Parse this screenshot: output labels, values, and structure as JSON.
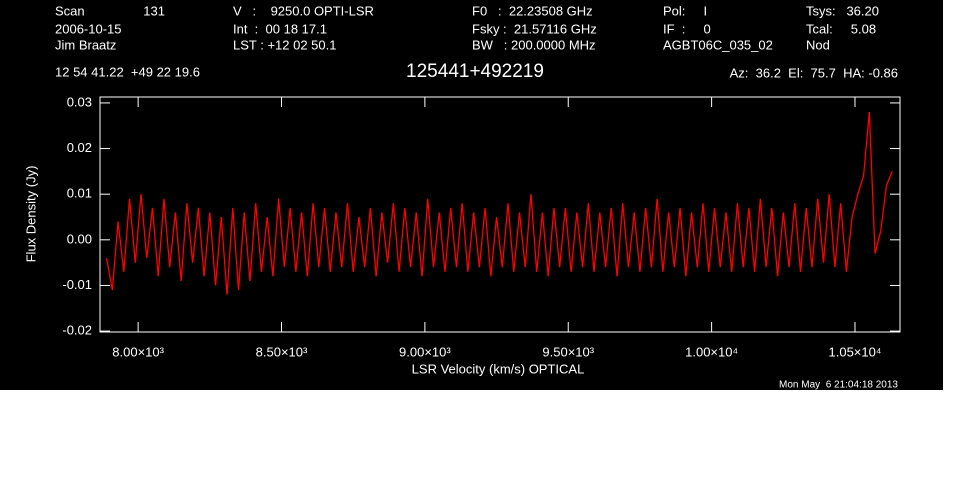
{
  "header": {
    "scan_label": "Scan",
    "scan": "131",
    "rows": [
      [
        "2006-10-15",
        "Int  :  00 18 17.1",
        "Fsky :  21.57116 GHz",
        "IF  :     0",
        "Tcal:     5.08"
      ],
      [
        "Jim Braatz",
        "LST : +12 02 50.1",
        "BW   : 200.0000 MHz",
        "AGBT06C_035_02",
        "Nod"
      ]
    ],
    "top": [
      "V   :    9250.0 OPTI-LSR",
      "F0   :  22.23508 GHz",
      "Pol:     I",
      "Tsys:   36.20"
    ],
    "coords": "12 54 41.22  +49 22 19.6",
    "pointing": "Az:  36.2  El:  75.7  HA: -0.86"
  },
  "timestamp": "Mon May  6 21:04:18 2013",
  "chart_data": {
    "type": "line",
    "title": "125441+492219",
    "xlabel": "LSR Velocity (km/s) OPTICAL",
    "ylabel": "Flux Density (Jy)",
    "xlim": [
      7867,
      10657
    ],
    "ylim": [
      -0.0202,
      0.0313
    ],
    "xticks": [
      {
        "value": 8000,
        "label": "8.00×10³"
      },
      {
        "value": 8500,
        "label": "8.50×10³"
      },
      {
        "value": 9000,
        "label": "9.00×10³"
      },
      {
        "value": 9500,
        "label": "9.50×10³"
      },
      {
        "value": 10000,
        "label": "1.00×10⁴"
      },
      {
        "value": 10500,
        "label": "1.05×10⁴"
      }
    ],
    "yticks": [
      -0.02,
      -0.01,
      {
        "value": 0,
        "label": "0.00"
      },
      0.01,
      0.02,
      0.03
    ],
    "x": [
      7890,
      7910,
      7930,
      7950,
      7970,
      7990,
      8010,
      8030,
      8050,
      8070,
      8090,
      8110,
      8130,
      8150,
      8170,
      8190,
      8210,
      8230,
      8250,
      8270,
      8290,
      8310,
      8330,
      8350,
      8370,
      8390,
      8410,
      8430,
      8450,
      8470,
      8490,
      8510,
      8530,
      8550,
      8570,
      8590,
      8610,
      8630,
      8650,
      8670,
      8690,
      8710,
      8730,
      8750,
      8770,
      8790,
      8810,
      8830,
      8850,
      8870,
      8890,
      8910,
      8930,
      8950,
      8970,
      8990,
      9010,
      9030,
      9050,
      9070,
      9090,
      9110,
      9130,
      9150,
      9170,
      9190,
      9210,
      9230,
      9250,
      9270,
      9290,
      9310,
      9330,
      9350,
      9370,
      9390,
      9410,
      9430,
      9450,
      9470,
      9490,
      9510,
      9530,
      9550,
      9570,
      9590,
      9610,
      9630,
      9650,
      9670,
      9690,
      9710,
      9730,
      9750,
      9770,
      9790,
      9810,
      9830,
      9850,
      9870,
      9890,
      9910,
      9930,
      9950,
      9970,
      9990,
      10010,
      10030,
      10050,
      10070,
      10090,
      10110,
      10130,
      10150,
      10170,
      10190,
      10210,
      10230,
      10250,
      10270,
      10290,
      10310,
      10330,
      10350,
      10370,
      10390,
      10410,
      10430,
      10450,
      10470,
      10490,
      10510,
      10530,
      10550,
      10570,
      10590,
      10610,
      10630
    ],
    "series": [
      {
        "name": "spectrum",
        "color": "#ff0000",
        "values": [
          -0.004,
          -0.011,
          0.004,
          -0.007,
          0.009,
          -0.005,
          0.01,
          -0.004,
          0.007,
          -0.008,
          0.009,
          -0.006,
          0.006,
          -0.009,
          0.008,
          -0.005,
          0.007,
          -0.008,
          0.006,
          -0.01,
          0.005,
          -0.012,
          0.007,
          -0.011,
          0.006,
          -0.009,
          0.008,
          -0.007,
          0.005,
          -0.008,
          0.009,
          -0.006,
          0.007,
          -0.007,
          0.006,
          -0.008,
          0.008,
          -0.006,
          0.007,
          -0.007,
          0.006,
          -0.006,
          0.008,
          -0.007,
          0.005,
          -0.006,
          0.007,
          -0.008,
          0.006,
          -0.005,
          0.008,
          -0.007,
          0.007,
          -0.006,
          0.006,
          -0.008,
          0.009,
          -0.006,
          0.006,
          -0.007,
          0.007,
          -0.006,
          0.008,
          -0.007,
          0.006,
          -0.006,
          0.007,
          -0.008,
          0.005,
          -0.006,
          0.008,
          -0.007,
          0.006,
          -0.006,
          0.01,
          -0.007,
          0.006,
          -0.008,
          0.007,
          -0.006,
          0.007,
          -0.007,
          0.006,
          -0.006,
          0.008,
          -0.007,
          0.006,
          -0.006,
          0.007,
          -0.008,
          0.008,
          -0.006,
          0.006,
          -0.007,
          0.007,
          -0.006,
          0.009,
          -0.007,
          0.006,
          -0.006,
          0.007,
          -0.008,
          0.006,
          -0.006,
          0.008,
          -0.007,
          0.007,
          -0.006,
          0.006,
          -0.007,
          0.008,
          -0.006,
          0.007,
          -0.007,
          0.009,
          -0.006,
          0.007,
          -0.008,
          0.006,
          -0.006,
          0.008,
          -0.007,
          0.007,
          -0.006,
          0.009,
          -0.005,
          0.01,
          -0.006,
          0.008,
          -0.007,
          0.005,
          0.01,
          0.014,
          0.028,
          -0.003,
          0.002,
          0.012,
          0.015
        ]
      }
    ]
  }
}
